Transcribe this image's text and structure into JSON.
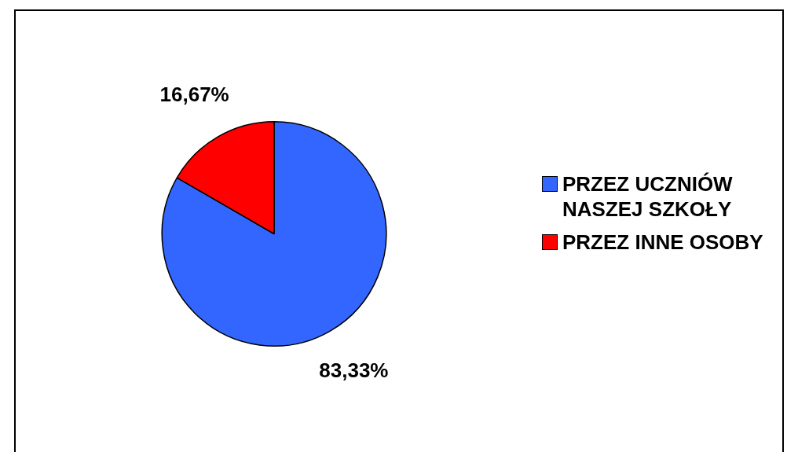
{
  "chart_data": {
    "type": "pie",
    "categories": [
      "PRZEZ UCZNIÓW NASZEJ SZKOŁY",
      "PRZEZ INNE OSOBY"
    ],
    "values": [
      83.33,
      16.67
    ],
    "colors": [
      "#3366ff",
      "#ff0000"
    ],
    "value_labels": [
      "83,33%",
      "16,67%"
    ],
    "legend": "right"
  }
}
